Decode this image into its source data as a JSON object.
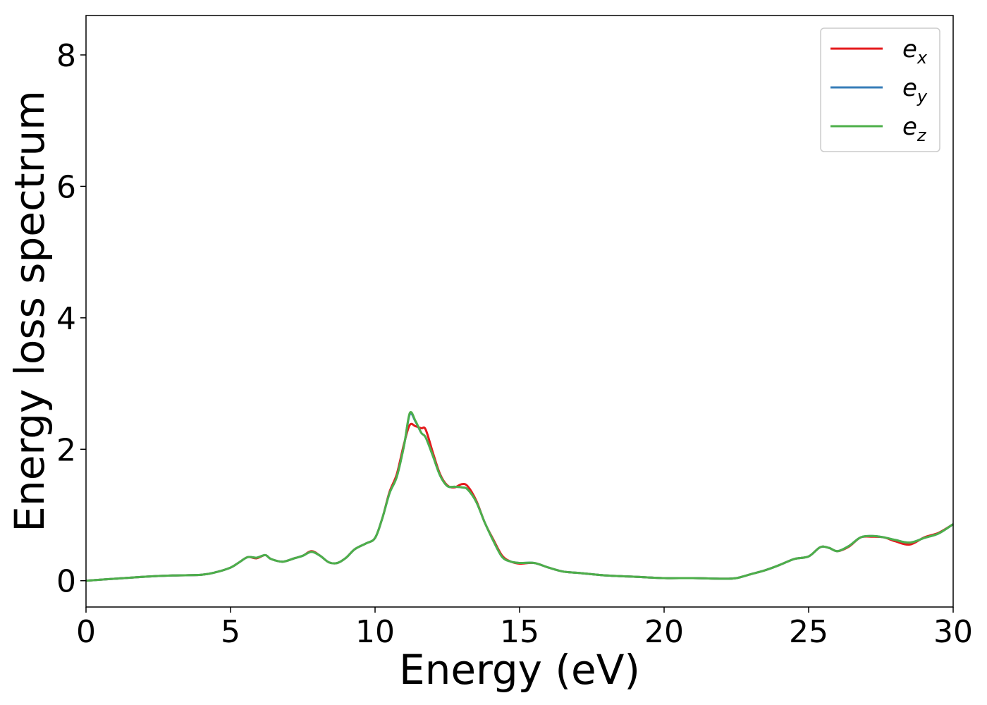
{
  "chart_data": {
    "type": "line",
    "title": "",
    "xlabel": "Energy (eV)",
    "ylabel": "Energy loss spectrum",
    "xlim": [
      0,
      30
    ],
    "ylim": [
      -0.4,
      8.6
    ],
    "xticks": [
      0,
      5,
      10,
      15,
      20,
      25,
      30
    ],
    "xtick_labels": [
      "0",
      "5",
      "10",
      "15",
      "20",
      "25",
      "30"
    ],
    "yticks": [
      0,
      2,
      4,
      6,
      8
    ],
    "ytick_labels": [
      "0",
      "2",
      "4",
      "6",
      "8"
    ],
    "grid": false,
    "legend_position": "top-right",
    "series": [
      {
        "name": "e_x",
        "base": "e",
        "sub": "x",
        "color": "#e41a1c",
        "x": [
          0,
          1,
          2,
          3,
          4,
          4.5,
          5,
          5.3,
          5.6,
          5.9,
          6.2,
          6.4,
          6.8,
          7.2,
          7.5,
          7.8,
          8.1,
          8.4,
          8.7,
          9.0,
          9.3,
          9.7,
          10.0,
          10.25,
          10.5,
          10.75,
          11.0,
          11.2,
          11.4,
          11.6,
          11.75,
          12.0,
          12.25,
          12.5,
          12.75,
          13.0,
          13.2,
          13.5,
          13.8,
          14.1,
          14.4,
          14.7,
          15.0,
          15.5,
          16.0,
          16.5,
          17.0,
          18.0,
          19.0,
          20.0,
          21.0,
          22.0,
          22.5,
          23.0,
          23.5,
          24.0,
          24.5,
          25.0,
          25.4,
          25.7,
          26.0,
          26.4,
          26.8,
          27.2,
          27.6,
          28.0,
          28.5,
          29.0,
          29.5,
          30.0
        ],
        "y": [
          0.0,
          0.03,
          0.06,
          0.08,
          0.09,
          0.13,
          0.2,
          0.28,
          0.36,
          0.34,
          0.39,
          0.33,
          0.29,
          0.34,
          0.38,
          0.45,
          0.38,
          0.28,
          0.27,
          0.35,
          0.48,
          0.57,
          0.65,
          0.95,
          1.35,
          1.62,
          2.08,
          2.37,
          2.35,
          2.32,
          2.3,
          1.95,
          1.62,
          1.45,
          1.42,
          1.47,
          1.44,
          1.22,
          0.88,
          0.62,
          0.38,
          0.29,
          0.26,
          0.27,
          0.2,
          0.14,
          0.12,
          0.08,
          0.06,
          0.04,
          0.04,
          0.03,
          0.04,
          0.1,
          0.16,
          0.24,
          0.33,
          0.37,
          0.51,
          0.5,
          0.45,
          0.52,
          0.66,
          0.67,
          0.66,
          0.6,
          0.55,
          0.66,
          0.73,
          0.86
        ]
      },
      {
        "name": "e_y",
        "base": "e",
        "sub": "y",
        "color": "#377eb8",
        "x": [
          0,
          1,
          2,
          3,
          4,
          4.5,
          5,
          5.3,
          5.6,
          5.9,
          6.2,
          6.4,
          6.8,
          7.2,
          7.5,
          7.8,
          8.1,
          8.4,
          8.7,
          9.0,
          9.3,
          9.7,
          10.0,
          10.25,
          10.5,
          10.75,
          11.0,
          11.2,
          11.4,
          11.6,
          11.75,
          12.0,
          12.25,
          12.5,
          12.75,
          13.0,
          13.2,
          13.5,
          13.8,
          14.1,
          14.4,
          14.7,
          15.0,
          15.5,
          16.0,
          16.5,
          17.0,
          18.0,
          19.0,
          20.0,
          21.0,
          22.0,
          22.5,
          23.0,
          23.5,
          24.0,
          24.5,
          25.0,
          25.4,
          25.7,
          26.0,
          26.4,
          26.8,
          27.2,
          27.6,
          28.0,
          28.5,
          29.0,
          29.5,
          30.0
        ],
        "y": [
          0.0,
          0.03,
          0.06,
          0.08,
          0.09,
          0.13,
          0.2,
          0.28,
          0.36,
          0.35,
          0.39,
          0.33,
          0.29,
          0.34,
          0.38,
          0.44,
          0.38,
          0.28,
          0.27,
          0.35,
          0.48,
          0.57,
          0.65,
          0.95,
          1.33,
          1.58,
          2.05,
          2.53,
          2.42,
          2.25,
          2.18,
          1.9,
          1.6,
          1.44,
          1.43,
          1.42,
          1.39,
          1.2,
          0.88,
          0.6,
          0.36,
          0.29,
          0.27,
          0.27,
          0.2,
          0.14,
          0.12,
          0.08,
          0.06,
          0.04,
          0.04,
          0.03,
          0.04,
          0.1,
          0.16,
          0.24,
          0.33,
          0.37,
          0.51,
          0.5,
          0.45,
          0.53,
          0.66,
          0.68,
          0.66,
          0.62,
          0.58,
          0.65,
          0.72,
          0.86
        ]
      },
      {
        "name": "e_z",
        "base": "e",
        "sub": "z",
        "color": "#4daf4a",
        "x": [
          0,
          1,
          2,
          3,
          4,
          4.5,
          5,
          5.3,
          5.6,
          5.9,
          6.2,
          6.4,
          6.8,
          7.2,
          7.5,
          7.8,
          8.1,
          8.4,
          8.7,
          9.0,
          9.3,
          9.7,
          10.0,
          10.25,
          10.5,
          10.75,
          11.0,
          11.2,
          11.4,
          11.6,
          11.75,
          12.0,
          12.25,
          12.5,
          12.75,
          13.0,
          13.2,
          13.5,
          13.8,
          14.1,
          14.4,
          14.7,
          15.0,
          15.5,
          16.0,
          16.5,
          17.0,
          18.0,
          19.0,
          20.0,
          21.0,
          22.0,
          22.5,
          23.0,
          23.5,
          24.0,
          24.5,
          25.0,
          25.4,
          25.7,
          26.0,
          26.4,
          26.8,
          27.2,
          27.6,
          28.0,
          28.5,
          29.0,
          29.5,
          30.0
        ],
        "y": [
          0.0,
          0.03,
          0.06,
          0.08,
          0.09,
          0.13,
          0.2,
          0.28,
          0.36,
          0.35,
          0.39,
          0.33,
          0.29,
          0.34,
          0.38,
          0.44,
          0.38,
          0.28,
          0.27,
          0.35,
          0.48,
          0.57,
          0.65,
          0.95,
          1.33,
          1.58,
          2.05,
          2.55,
          2.43,
          2.25,
          2.18,
          1.9,
          1.6,
          1.44,
          1.43,
          1.42,
          1.39,
          1.2,
          0.88,
          0.6,
          0.36,
          0.29,
          0.27,
          0.27,
          0.2,
          0.14,
          0.12,
          0.08,
          0.06,
          0.04,
          0.04,
          0.03,
          0.04,
          0.1,
          0.16,
          0.24,
          0.33,
          0.37,
          0.51,
          0.5,
          0.45,
          0.53,
          0.66,
          0.68,
          0.66,
          0.62,
          0.58,
          0.65,
          0.72,
          0.86
        ]
      }
    ]
  }
}
